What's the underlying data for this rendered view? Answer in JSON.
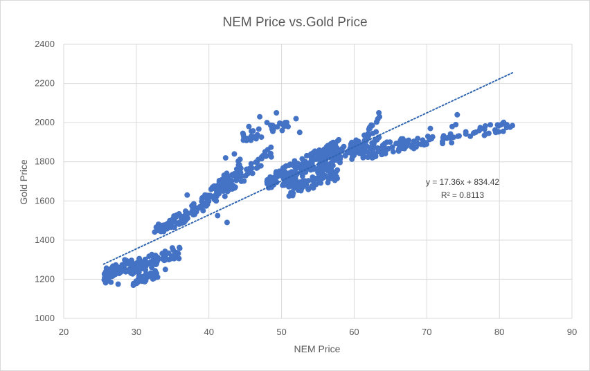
{
  "chart_data": {
    "type": "scatter",
    "title": "NEM Price vs.Gold Price",
    "xlabel": "NEM Price",
    "ylabel": "Gold Price",
    "xlim": [
      20,
      90
    ],
    "ylim": [
      1000,
      2400
    ],
    "xticks": [
      "20",
      "30",
      "40",
      "50",
      "60",
      "70",
      "80",
      "90"
    ],
    "yticks": [
      "1000",
      "1200",
      "1400",
      "1600",
      "1800",
      "2000",
      "2200",
      "2400"
    ],
    "grid": true,
    "marker_color": "#4472C4",
    "trendline": {
      "type": "linear",
      "slope": 17.36,
      "intercept": 834.42,
      "x_range": [
        25.5,
        82
      ],
      "equation": "y = 17.36x + 834.42",
      "r_squared": "R² = 0.8113",
      "style": "dotted"
    },
    "clusters": [
      {
        "n": 70,
        "x": [
          25.5,
          29.5
        ],
        "y0": [
          1215,
          1285
        ],
        "dy": 18,
        "spread": 60,
        "seed": 11
      },
      {
        "n": 75,
        "x": [
          29,
          36
        ],
        "y0": [
          1245,
          1345
        ],
        "dy": 14,
        "spread": 70,
        "seed": 12
      },
      {
        "n": 25,
        "x": [
          29,
          33
        ],
        "y0": [
          1180,
          1230
        ],
        "dy": 0,
        "spread": 40,
        "seed": 13
      },
      {
        "n": 55,
        "x": [
          32.5,
          38.5
        ],
        "y0": [
          1440,
          1560
        ],
        "dy": 0,
        "spread": 60,
        "seed": 14
      },
      {
        "n": 35,
        "x": [
          36,
          40
        ],
        "y0": [
          1500,
          1620
        ],
        "dy": 0,
        "spread": 60,
        "seed": 15
      },
      {
        "n": 65,
        "x": [
          39.5,
          44.5
        ],
        "y0": [
          1600,
          1780
        ],
        "dy": 0,
        "spread": 90,
        "seed": 16
      },
      {
        "n": 55,
        "x": [
          42,
          49
        ],
        "y0": [
          1650,
          1860
        ],
        "dy": 0,
        "spread": 70,
        "seed": 17
      },
      {
        "n": 35,
        "x": [
          44.5,
          51
        ],
        "y0": [
          1920,
          1990
        ],
        "dy": 0,
        "spread": 50,
        "seed": 18
      },
      {
        "n": 40,
        "x": [
          48,
          50.5
        ],
        "y0": [
          1680,
          1760
        ],
        "dy": 0,
        "spread": 60,
        "seed": 19
      },
      {
        "n": 150,
        "x": [
          50,
          58
        ],
        "y0": [
          1720,
          1860
        ],
        "dy": 0,
        "spread": 110,
        "seed": 20
      },
      {
        "n": 110,
        "x": [
          55,
          63.5
        ],
        "y0": [
          1770,
          1930
        ],
        "dy": 0,
        "spread": 90,
        "seed": 21
      },
      {
        "n": 60,
        "x": [
          51,
          58
        ],
        "y0": [
          1650,
          1740
        ],
        "dy": 0,
        "spread": 60,
        "seed": 22
      },
      {
        "n": 55,
        "x": [
          61,
          67
        ],
        "y0": [
          1830,
          1900
        ],
        "dy": 0,
        "spread": 60,
        "seed": 23
      },
      {
        "n": 35,
        "x": [
          66,
          71
        ],
        "y0": [
          1870,
          1920
        ],
        "dy": 0,
        "spread": 50,
        "seed": 24
      },
      {
        "n": 40,
        "x": [
          72,
          82
        ],
        "y0": [
          1910,
          1990
        ],
        "dy": 0,
        "spread": 50,
        "seed": 25
      },
      {
        "n": 10,
        "x": [
          62,
          64
        ],
        "y0": [
          1960,
          2040
        ],
        "dy": 0,
        "spread": 40,
        "seed": 26
      }
    ],
    "points": [
      [
        26.5,
        1185
      ],
      [
        27.5,
        1175
      ],
      [
        30.8,
        1190
      ],
      [
        42.3,
        1820
      ],
      [
        41.2,
        1525
      ],
      [
        49.3,
        2050
      ],
      [
        52,
        2020
      ],
      [
        63.4,
        2050
      ],
      [
        63.5,
        2030
      ],
      [
        74.2,
        2040
      ],
      [
        74,
        1990
      ],
      [
        73.5,
        1980
      ],
      [
        81.8,
        1985
      ],
      [
        81,
        1975
      ],
      [
        64.5,
        1900
      ],
      [
        33.8,
        1330
      ],
      [
        34.5,
        1300
      ],
      [
        47,
        2030
      ],
      [
        48,
        2000
      ],
      [
        52.5,
        1950
      ],
      [
        45.5,
        1980
      ],
      [
        43.5,
        1840
      ],
      [
        39.2,
        1550
      ],
      [
        41,
        1600
      ],
      [
        42.5,
        1490
      ],
      [
        31.5,
        1210
      ],
      [
        32,
        1215
      ],
      [
        34,
        1250
      ],
      [
        40.5,
        1670
      ],
      [
        37,
        1630
      ],
      [
        70.5,
        1970
      ],
      [
        69.5,
        1900
      ],
      [
        67.5,
        1910
      ],
      [
        76,
        1930
      ],
      [
        79.5,
        1950
      ]
    ]
  }
}
